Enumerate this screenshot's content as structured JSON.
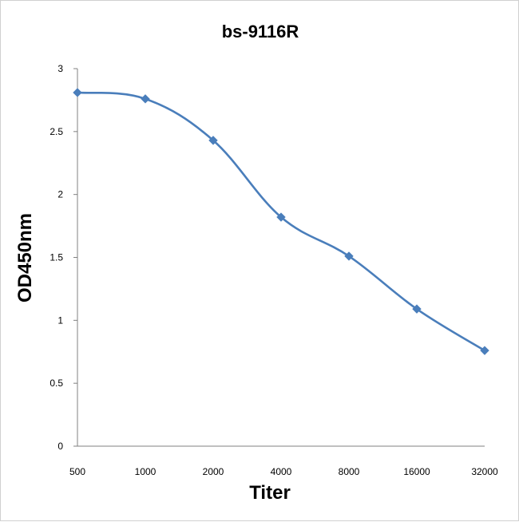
{
  "chart_data": {
    "type": "line",
    "title": "bs-9116R",
    "xlabel": "Titer",
    "ylabel": "OD450nm",
    "categories": [
      "500",
      "1000",
      "2000",
      "4000",
      "8000",
      "16000",
      "32000"
    ],
    "series": [
      {
        "values": [
          2.81,
          2.76,
          2.43,
          1.82,
          1.51,
          1.09,
          0.76
        ]
      }
    ],
    "ylim": [
      0,
      3
    ],
    "yticks": [
      "0",
      "0.5",
      "1",
      "1.5",
      "2",
      "2.5",
      "3"
    ],
    "grid": false,
    "legend": "none",
    "line_color": "#4a7ebb",
    "marker": "diamond"
  }
}
